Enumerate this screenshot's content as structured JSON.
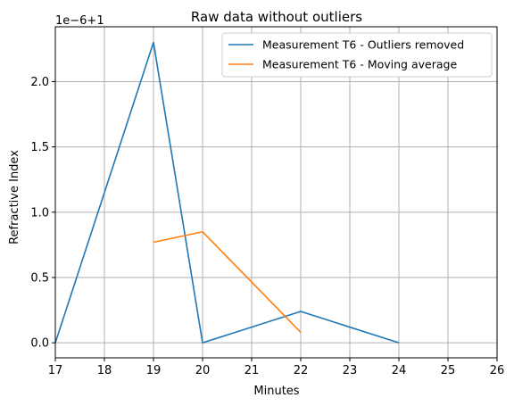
{
  "chart_data": {
    "type": "line",
    "title": "Raw data without outliers",
    "xlabel": "Minutes",
    "ylabel": "Refractive Index",
    "offset_label": "1e−6+1",
    "xlim": [
      17,
      26
    ],
    "ylim": [
      -0.115,
      2.42
    ],
    "xticks": [
      "17",
      "18",
      "19",
      "20",
      "21",
      "22",
      "23",
      "24",
      "25",
      "26"
    ],
    "yticks": [
      "0.0",
      "0.5",
      "1.0",
      "1.5",
      "2.0"
    ],
    "grid": true,
    "legend_position": "top-right",
    "series": [
      {
        "name": "Measurement T6 - Outliers removed",
        "color": "#1f77b4",
        "x": [
          17,
          19,
          20,
          22,
          24
        ],
        "y": [
          0.0,
          2.3,
          0.0,
          0.24,
          0.0
        ]
      },
      {
        "name": "Measurement T6 - Moving average",
        "color": "#ff7f0e",
        "x": [
          19,
          20,
          22
        ],
        "y": [
          0.77,
          0.85,
          0.08
        ]
      }
    ]
  }
}
